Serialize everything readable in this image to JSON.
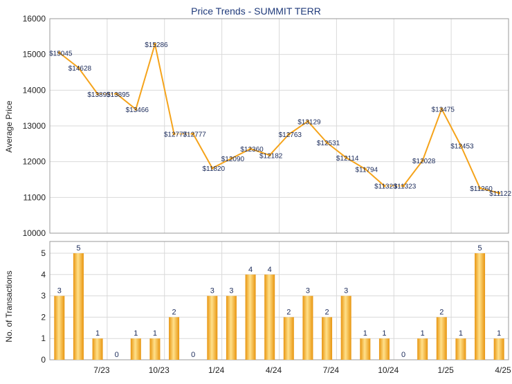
{
  "chart_data": [
    {
      "type": "line",
      "title": "Price Trends - SUMMIT TERR",
      "ylabel": "Average Price",
      "ylim": [
        10000,
        16000
      ],
      "yticks": [
        10000,
        11000,
        12000,
        13000,
        14000,
        15000,
        16000
      ],
      "ytick_labels": [
        "10000",
        "11000",
        "12000",
        "13000",
        "14000",
        "15000",
        "16000"
      ],
      "grid": true,
      "series": [
        {
          "values": [
            15045,
            14628,
            13895,
            13895,
            13466,
            15286,
            12777,
            12777,
            11820,
            12090,
            12360,
            12182,
            12763,
            13129,
            12531,
            12114,
            11794,
            11323,
            11323,
            12028,
            13475,
            12453,
            11260,
            11122
          ],
          "labels": [
            "$15045",
            "$14628",
            "$13895",
            "$13895",
            "$13466",
            "$15286",
            "$12777",
            "$12777",
            "$11820",
            "$12090",
            "$12360",
            "$12182",
            "$12763",
            "$13129",
            "$12531",
            "$12114",
            "$11794",
            "$11323",
            "$11323",
            "$12028",
            "$13475",
            "$12453",
            "$11260",
            "$11122"
          ]
        }
      ]
    },
    {
      "type": "bar",
      "ylabel": "No. of Transactions",
      "ylim": [
        0,
        5
      ],
      "yticks": [
        0,
        1,
        2,
        3,
        4,
        5
      ],
      "ytick_labels": [
        "0",
        "1",
        "2",
        "3",
        "4",
        "5"
      ],
      "values": [
        3,
        5,
        1,
        0,
        1,
        1,
        2,
        0,
        3,
        3,
        4,
        4,
        2,
        3,
        2,
        3,
        1,
        1,
        0,
        1,
        2,
        1,
        5,
        1
      ],
      "value_labels": [
        "3",
        "5",
        "1",
        "0",
        "1",
        "1",
        "2",
        "0",
        "3",
        "3",
        "4",
        "4",
        "2",
        "3",
        "2",
        "3",
        "1",
        "1",
        "0",
        "1",
        "2",
        "1",
        "5",
        "1"
      ],
      "xticks": [
        {
          "index": 2,
          "label": "7/23"
        },
        {
          "index": 5,
          "label": "10/23"
        },
        {
          "index": 8,
          "label": "1/24"
        },
        {
          "index": 11,
          "label": "4/24"
        },
        {
          "index": 14,
          "label": "7/24"
        },
        {
          "index": 17,
          "label": "10/24"
        },
        {
          "index": 20,
          "label": "1/25"
        },
        {
          "index": 23,
          "label": "4/25"
        }
      ],
      "grid": true
    }
  ],
  "colors": {
    "line": "#f5a31a",
    "bar_dark": "#e8950f",
    "bar_light": "#ffe08a",
    "title": "#1f3a7a",
    "label": "#1a2a5a"
  }
}
